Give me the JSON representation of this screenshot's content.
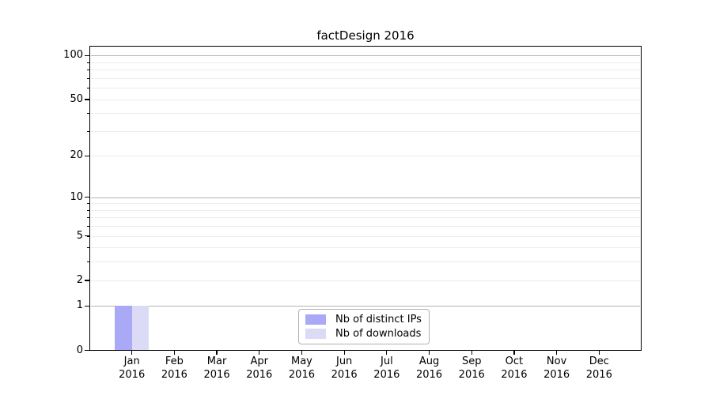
{
  "figure": {
    "background": "#ffffff"
  },
  "chart_data": {
    "type": "bar",
    "title": "factDesign 2016",
    "x": {
      "months": [
        "Jan",
        "Feb",
        "Mar",
        "Apr",
        "May",
        "Jun",
        "Jul",
        "Aug",
        "Sep",
        "Oct",
        "Nov",
        "Dec"
      ],
      "year": "2016"
    },
    "y_axis": {
      "scale": "log10(1+x)",
      "tick_labels": [
        0,
        1,
        2,
        5,
        10,
        20,
        50,
        100
      ],
      "major_gridlines": [
        1,
        10,
        100
      ],
      "minor_gridlines": [
        2,
        3,
        4,
        5,
        6,
        7,
        8,
        9,
        20,
        30,
        40,
        50,
        60,
        70,
        80,
        90
      ],
      "top_value": 110
    },
    "series": [
      {
        "name": "Nb of distinct IPs",
        "color": "#a9a9f6",
        "values": [
          1,
          0,
          0,
          0,
          0,
          0,
          0,
          0,
          0,
          0,
          0,
          0
        ]
      },
      {
        "name": "Nb of downloads",
        "color": "#dbdbf8",
        "values": [
          1,
          0,
          0,
          0,
          0,
          0,
          0,
          0,
          0,
          0,
          0,
          0
        ]
      }
    ],
    "legend_position": "bottom-center"
  },
  "colors": {
    "axis": "#000000",
    "grid_major": "#b3b3b3",
    "grid_minor": "#ebebeb",
    "text": "#000000",
    "legend_border": "#b0b0b0"
  }
}
